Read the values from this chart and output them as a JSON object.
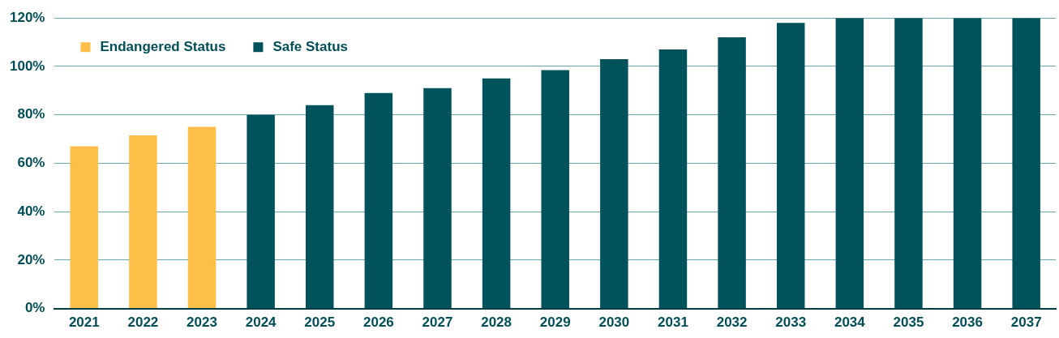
{
  "chart_data": {
    "type": "bar",
    "categories": [
      "2021",
      "2022",
      "2023",
      "2024",
      "2025",
      "2026",
      "2027",
      "2028",
      "2029",
      "2030",
      "2031",
      "2032",
      "2033",
      "2034",
      "2035",
      "2036",
      "2037"
    ],
    "series": [
      {
        "name": "Endangered Status",
        "color": "#fdbf48",
        "values": [
          67,
          71.5,
          75,
          null,
          null,
          null,
          null,
          null,
          null,
          null,
          null,
          null,
          null,
          null,
          null,
          null,
          null
        ]
      },
      {
        "name": "Safe Status",
        "color": "#00535a",
        "values": [
          null,
          null,
          null,
          80,
          84,
          89,
          91,
          95,
          98.5,
          103,
          107,
          112,
          118,
          120,
          120,
          120,
          120
        ]
      }
    ],
    "ylim": [
      0,
      120
    ],
    "yticks": [
      {
        "value": 0,
        "label": "0%"
      },
      {
        "value": 20,
        "label": "20%"
      },
      {
        "value": 40,
        "label": "40%"
      },
      {
        "value": 60,
        "label": "60%"
      },
      {
        "value": 80,
        "label": "80%"
      },
      {
        "value": 100,
        "label": "100%"
      },
      {
        "value": 120,
        "label": "120%"
      }
    ],
    "grid": "y",
    "legend": "top left"
  }
}
